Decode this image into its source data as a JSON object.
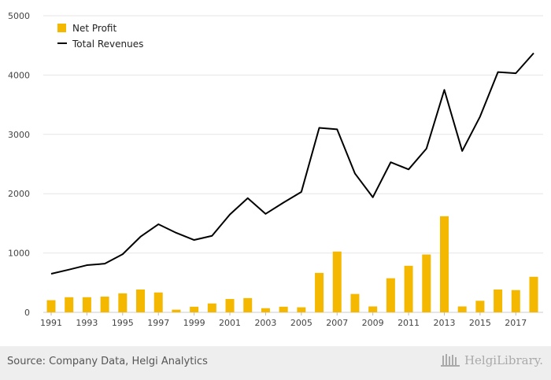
{
  "chart_data": {
    "type": "bar+line",
    "x": [
      1991,
      1992,
      1993,
      1994,
      1995,
      1996,
      1997,
      1998,
      1999,
      2000,
      2001,
      2002,
      2003,
      2004,
      2005,
      2006,
      2007,
      2008,
      2009,
      2010,
      2011,
      2012,
      2013,
      2014,
      2015,
      2016,
      2017,
      2018
    ],
    "x_tick_labels": [
      "1991",
      "1993",
      "1995",
      "1997",
      "1999",
      "2001",
      "2003",
      "2005",
      "2007",
      "2009",
      "2011",
      "2013",
      "2015",
      "2017"
    ],
    "y_tick_labels": [
      "0",
      "1000",
      "2000",
      "3000",
      "4000",
      "5000"
    ],
    "ylim": [
      0,
      5000
    ],
    "grid": true,
    "legend_position": "top-left",
    "series": [
      {
        "name": "Net Profit",
        "kind": "bar",
        "color": "#f5b800",
        "values": [
          205,
          255,
          255,
          265,
          320,
          385,
          335,
          45,
          95,
          150,
          225,
          240,
          70,
          95,
          85,
          665,
          1025,
          310,
          100,
          575,
          785,
          975,
          1620,
          100,
          195,
          385,
          375,
          600
        ]
      },
      {
        "name": "Total Revenues",
        "kind": "line",
        "color": "#000000",
        "values": [
          650,
          720,
          795,
          820,
          980,
          1275,
          1485,
          1340,
          1220,
          1290,
          1650,
          1925,
          1660,
          1850,
          2030,
          3110,
          3085,
          2340,
          1940,
          2530,
          2410,
          2760,
          3750,
          2720,
          3300,
          4050,
          4030,
          4370
        ]
      }
    ],
    "title": "",
    "xlabel": "",
    "ylabel": ""
  },
  "footer": {
    "source": "Source: Company Data, Helgi Analytics",
    "brand": "HelgiLibrary."
  }
}
